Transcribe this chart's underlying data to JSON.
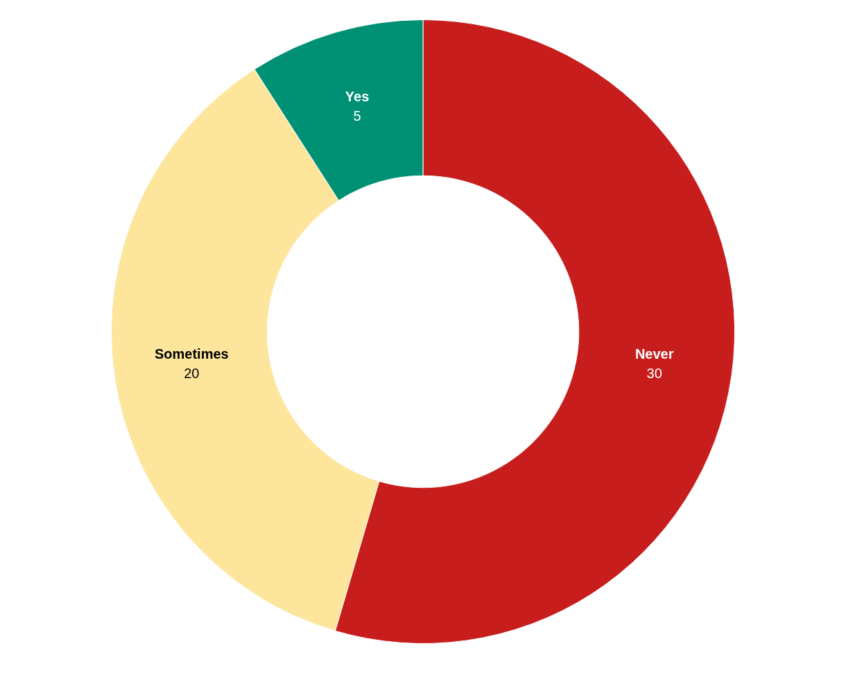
{
  "chart_data": {
    "type": "donut",
    "categories": [
      "Never",
      "Sometimes",
      "Yes"
    ],
    "values": [
      30,
      20,
      5
    ],
    "colors": [
      "#c71e1d",
      "#fde59c",
      "#009175"
    ],
    "data_labels": true,
    "legend": false
  }
}
